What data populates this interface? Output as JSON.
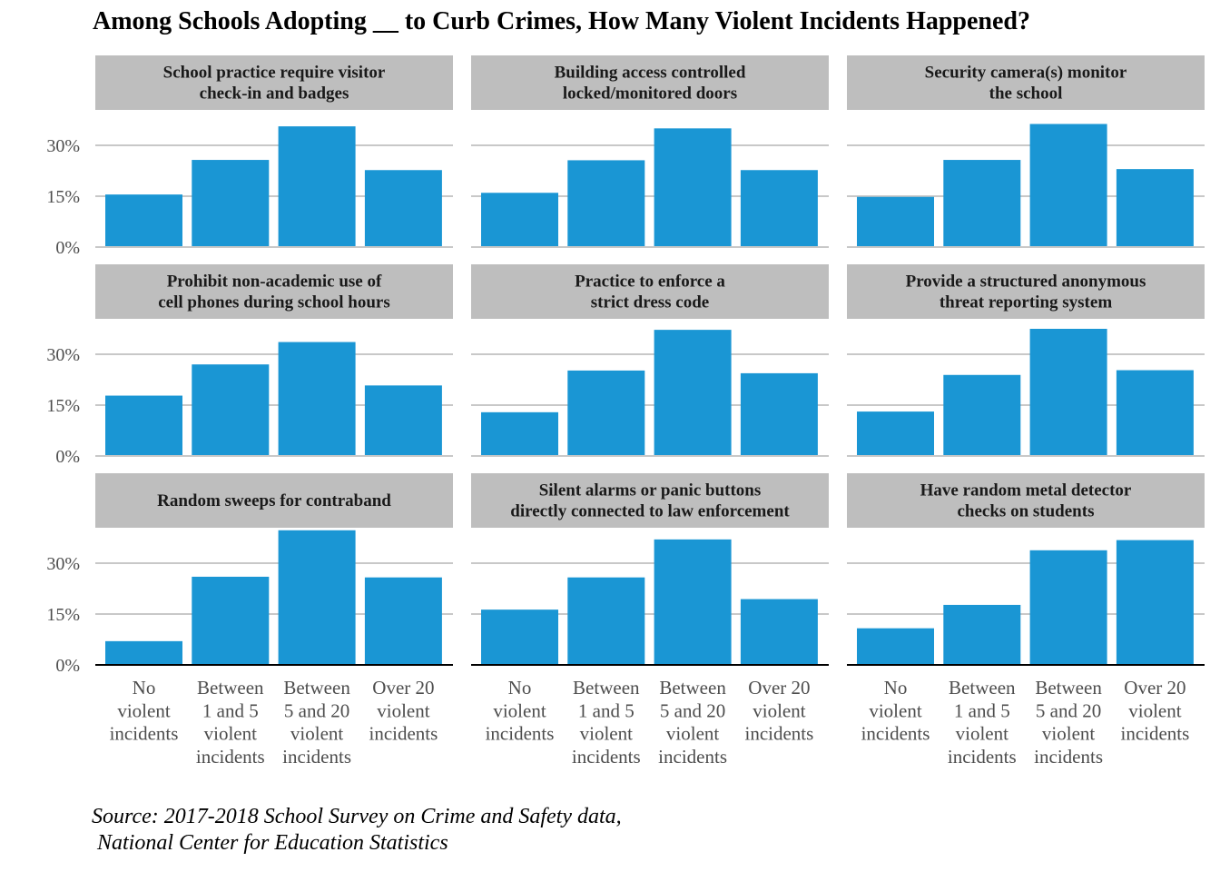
{
  "title": "Among Schools Adopting __ to Curb Crimes, How Many Violent Incidents Happened?",
  "source_lines": [
    "Source: 2017-2018 School Survey on Crime and Safety data,",
    " National Center for Education Statistics"
  ],
  "colors": {
    "bar": "#1a96d4",
    "strip": "#bebebe",
    "grid": "#c8c8c8",
    "axis": "#000000",
    "tick_text": "#4d4d4d"
  },
  "chart_data": {
    "type": "bar",
    "layout": "facet-grid-3x3",
    "categories": [
      "No violent incidents",
      "Between 1 and 5 violent incidents",
      "Between 5 and 20 violent incidents",
      "Over 20 violent incidents"
    ],
    "category_label_lines": [
      [
        "No",
        "violent",
        "incidents"
      ],
      [
        "Between",
        "1 and 5",
        "violent",
        "incidents"
      ],
      [
        "Between",
        "5 and 20",
        "violent",
        "incidents"
      ],
      [
        "Over 20",
        "violent",
        "incidents"
      ]
    ],
    "y_ticks": [
      0,
      15,
      30
    ],
    "y_tick_labels": [
      "0%",
      "15%",
      "30%"
    ],
    "ylim": [
      0,
      40
    ],
    "grid": true,
    "facets": [
      {
        "title_lines": [
          "School practice require visitor",
          "check-in and badges"
        ],
        "values": [
          15.5,
          25.7,
          35.6,
          22.7
        ]
      },
      {
        "title_lines": [
          "Building access controlled",
          "locked/monitored doors"
        ],
        "values": [
          16.0,
          25.6,
          35.0,
          22.7
        ]
      },
      {
        "title_lines": [
          "Security camera(s) monitor",
          "the school"
        ],
        "values": [
          14.8,
          25.7,
          36.3,
          23.0
        ]
      },
      {
        "title_lines": [
          "Prohibit non-academic use of",
          "cell phones during school hours"
        ],
        "values": [
          17.8,
          27.0,
          33.6,
          20.8
        ]
      },
      {
        "title_lines": [
          "Practice to enforce a",
          "strict dress code"
        ],
        "values": [
          12.9,
          25.2,
          37.2,
          24.4
        ]
      },
      {
        "title_lines": [
          "Provide a structured anonymous",
          "threat reporting system"
        ],
        "values": [
          13.1,
          23.9,
          37.5,
          25.3
        ]
      },
      {
        "title_lines": [
          "Random sweeps for contraband"
        ],
        "values": [
          7.0,
          26.0,
          39.7,
          25.8
        ]
      },
      {
        "title_lines": [
          "Silent alarms or panic buttons",
          "directly connected to law enforcement"
        ],
        "values": [
          16.3,
          25.8,
          37.0,
          19.4
        ]
      },
      {
        "title_lines": [
          "Have random metal detector",
          "checks on students"
        ],
        "values": [
          10.8,
          17.7,
          33.8,
          36.8
        ]
      }
    ]
  }
}
